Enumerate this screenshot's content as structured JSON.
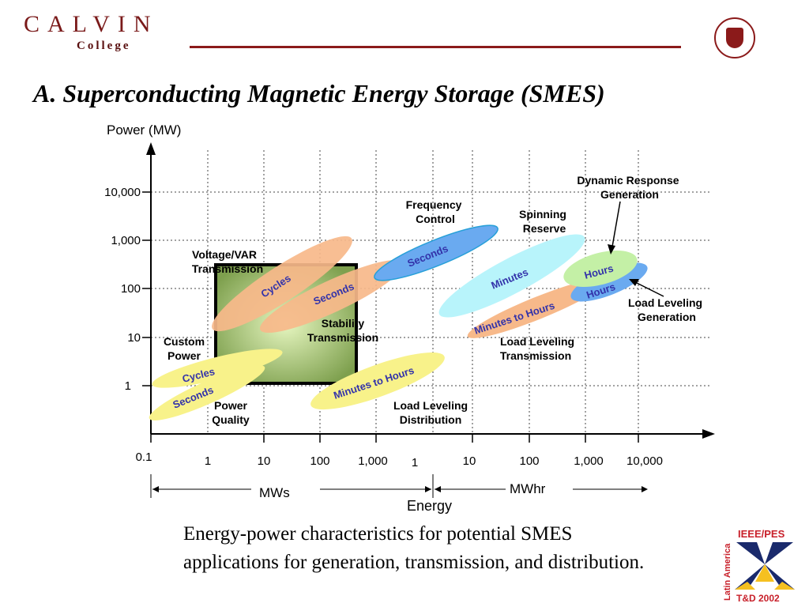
{
  "header": {
    "logo_top": "CALVIN",
    "logo_bottom": "College",
    "title": "A. Superconducting Magnetic Energy Storage (SMES)"
  },
  "diagram": {
    "y_axis_label": "Power (MW)",
    "y_ticks": [
      "10,000",
      "1,000",
      "100",
      "10",
      "1"
    ],
    "x_origin": "0.1",
    "x_ticks_mws": [
      "1",
      "10",
      "100",
      "1,000"
    ],
    "x_ticks_mwhr": [
      "1",
      "10",
      "100",
      "1,000",
      "10,000"
    ],
    "unit_mws": "MWs",
    "unit_mwhr": "MWhr",
    "x_axis_label": "Energy",
    "applications": {
      "voltage_var": [
        "Voltage/VAR",
        "Transmission"
      ],
      "custom_power": [
        "Custom",
        "Power"
      ],
      "power_quality": [
        "Power",
        "Quality"
      ],
      "stability": [
        "Stability",
        "Transmission"
      ],
      "frequency": [
        "Frequency",
        "Control"
      ],
      "spinning": [
        "Spinning",
        "Reserve"
      ],
      "dynamic": [
        "Dynamic Response",
        "Generation"
      ],
      "ll_gen": [
        "Load Leveling",
        "Generation"
      ],
      "ll_trans": [
        "Load Leveling",
        "Transmission"
      ],
      "ll_dist": [
        "Load Leveling",
        "Distribution"
      ]
    },
    "durations": {
      "cycles_orange": "Cycles",
      "seconds_orange": "Seconds",
      "seconds_blue": "Seconds",
      "cycles_yellow": "Cycles",
      "seconds_yellow": "Seconds",
      "minutes_hours_yellow": "Minutes to Hours",
      "minutes_cyan": "Minutes",
      "minutes_hours_orange": "Minutes to Hours",
      "hours_green": "Hours",
      "hours_blue": "Hours"
    },
    "colors": {
      "orange": "#f7b98a",
      "blue": "#6aaaf0",
      "yellow": "#f8f28a",
      "cyan": "#b8f4fb",
      "green": "#c4f0a6",
      "box": "#8fb060"
    }
  },
  "caption": [
    "Energy-power characteristics for potential SMES",
    "applications for generation, transmission, and distribution."
  ],
  "footer_logo": {
    "top": "IEEE/PES",
    "side": "Latin America",
    "bottom": "T&D 2002"
  }
}
